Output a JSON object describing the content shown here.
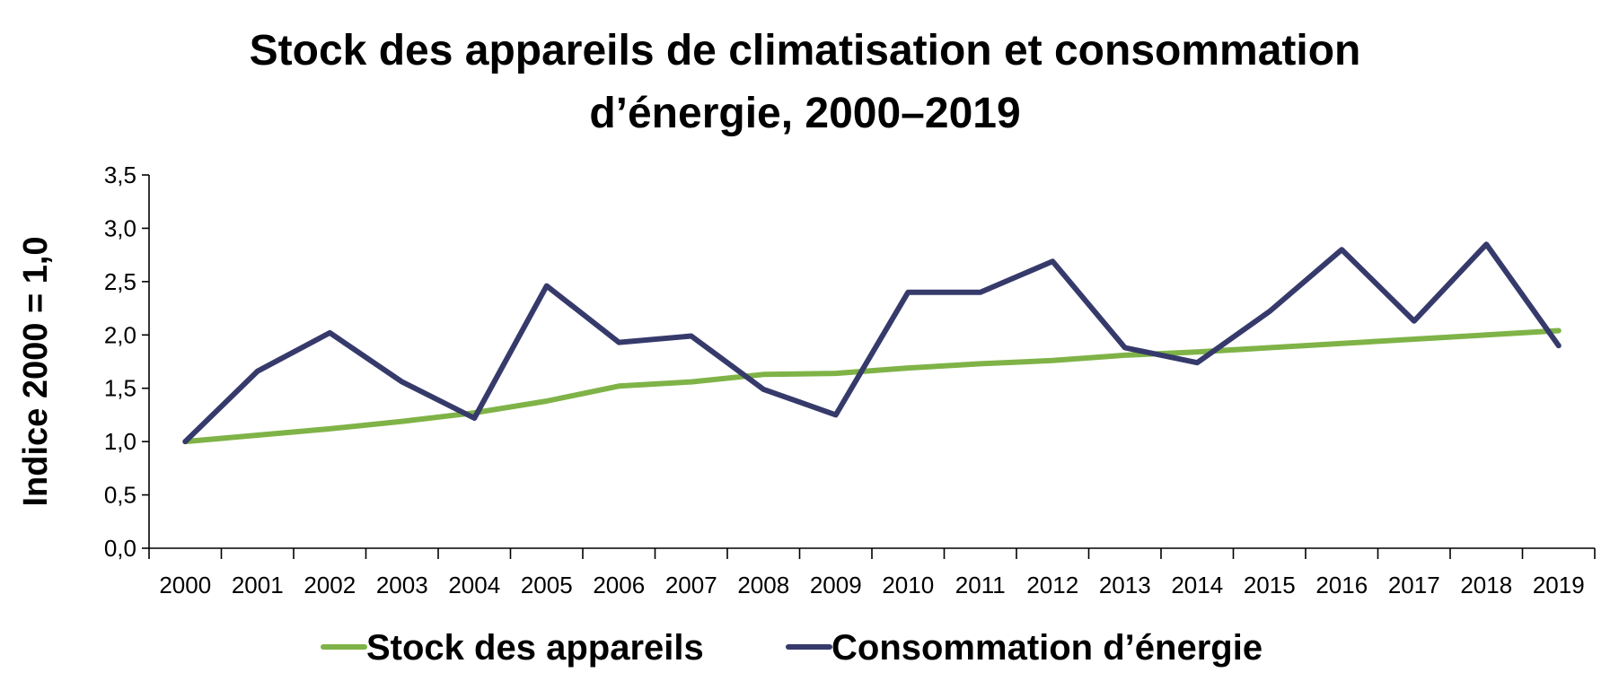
{
  "chart_data": {
    "type": "line",
    "title_lines": [
      "Stock des appareils de climatisation et consommation",
      "d’énergie, 2000–2019"
    ],
    "xlabel": "",
    "ylabel": "Indice 2000 = 1,0",
    "ylim": [
      0,
      3.5
    ],
    "yticks": [
      "0,0",
      "0,5",
      "1,0",
      "1,5",
      "2,0",
      "2,5",
      "3,0",
      "3,5"
    ],
    "ytick_values": [
      0,
      0.5,
      1.0,
      1.5,
      2.0,
      2.5,
      3.0,
      3.5
    ],
    "categories": [
      "2000",
      "2001",
      "2002",
      "2003",
      "2004",
      "2005",
      "2006",
      "2007",
      "2008",
      "2009",
      "2010",
      "2011",
      "2012",
      "2013",
      "2014",
      "2015",
      "2016",
      "2017",
      "2018",
      "2019"
    ],
    "grid": false,
    "legend_position": "bottom",
    "series": [
      {
        "name": "Stock des appareils",
        "color": "#7fb347",
        "values": [
          1.0,
          1.06,
          1.12,
          1.19,
          1.27,
          1.38,
          1.52,
          1.56,
          1.63,
          1.64,
          1.69,
          1.73,
          1.76,
          1.81,
          1.84,
          1.88,
          1.92,
          1.96,
          2.0,
          2.04
        ]
      },
      {
        "name": "Consommation d’énergie",
        "color": "#363a6b",
        "values": [
          1.0,
          1.66,
          2.02,
          1.56,
          1.22,
          2.46,
          1.93,
          1.99,
          1.49,
          1.25,
          2.4,
          2.4,
          2.69,
          1.88,
          1.74,
          2.22,
          2.8,
          2.13,
          2.85,
          1.9
        ]
      }
    ]
  }
}
